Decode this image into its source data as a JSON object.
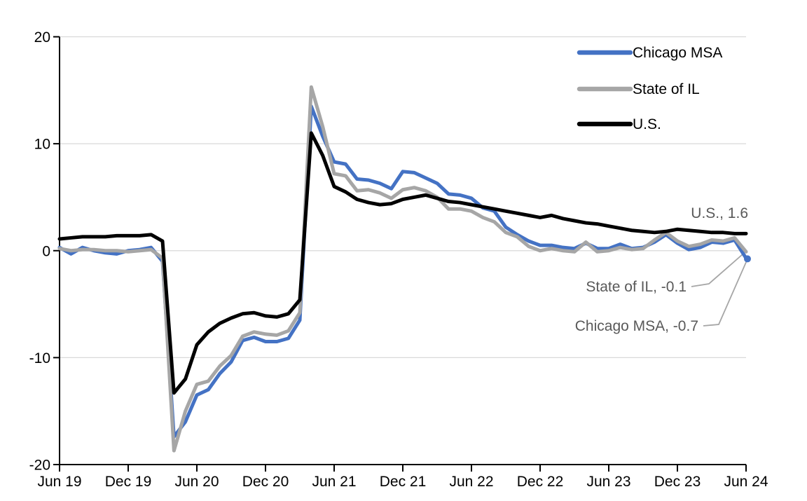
{
  "chart_data": {
    "type": "line",
    "title": "",
    "xlabel": "",
    "ylabel": "",
    "ylim": [
      -20,
      20
    ],
    "y_ticks": [
      20,
      10,
      0,
      -10,
      -20
    ],
    "x_tick_labels": [
      "Jun 19",
      "Dec 19",
      "Jun 20",
      "Dec 20",
      "Jun 21",
      "Dec 21",
      "Jun 22",
      "Dec 22",
      "Jun 23",
      "Dec 23",
      "Jun 24"
    ],
    "x_unit": "month",
    "x_range_months": 61,
    "grid": "horizontal-only",
    "legend_position": "top-right",
    "axis_color": "#000000",
    "gridline_color": "#d9d9d9",
    "annotation_text_color": "#595959",
    "leader_line_color": "#a6a6a6",
    "series": [
      {
        "name": "Chicago MSA",
        "color": "#4472C4",
        "end_value": -0.7,
        "annotation": "Chicago MSA, -0.7",
        "end_dot": true,
        "values": [
          0.3,
          -0.3,
          0.3,
          0.0,
          -0.2,
          -0.3,
          0.0,
          0.1,
          0.3,
          -1.0,
          -17.4,
          -16.0,
          -13.5,
          -13.0,
          -11.5,
          -10.4,
          -8.4,
          -8.1,
          -8.5,
          -8.5,
          -8.2,
          -6.5,
          13.5,
          10.7,
          8.3,
          8.1,
          6.7,
          6.6,
          6.3,
          5.8,
          7.4,
          7.3,
          6.8,
          6.3,
          5.3,
          5.2,
          4.9,
          4.0,
          3.7,
          2.2,
          1.5,
          0.9,
          0.5,
          0.5,
          0.3,
          0.2,
          0.7,
          0.2,
          0.2,
          0.6,
          0.2,
          0.3,
          0.8,
          1.5,
          0.7,
          0.1,
          0.3,
          0.8,
          0.7,
          1.0,
          -0.7
        ]
      },
      {
        "name": "State of IL",
        "color": "#A6A6A6",
        "end_value": -0.1,
        "annotation": "State of IL, -0.1",
        "end_dot": false,
        "values": [
          0.2,
          0.0,
          0.1,
          0.1,
          0.0,
          0.0,
          -0.1,
          0.0,
          0.1,
          -0.7,
          -18.7,
          -15.0,
          -12.5,
          -12.2,
          -10.8,
          -9.8,
          -8.0,
          -7.6,
          -7.8,
          -7.9,
          -7.5,
          -5.8,
          15.3,
          11.6,
          7.2,
          7.0,
          5.6,
          5.7,
          5.4,
          4.9,
          5.7,
          5.9,
          5.6,
          5.0,
          3.9,
          3.9,
          3.7,
          3.1,
          2.7,
          1.7,
          1.3,
          0.4,
          0.0,
          0.2,
          0.0,
          -0.1,
          0.8,
          -0.1,
          0.0,
          0.3,
          0.1,
          0.2,
          1.0,
          1.7,
          0.9,
          0.4,
          0.6,
          1.0,
          0.9,
          1.2,
          -0.1
        ]
      },
      {
        "name": "U.S.",
        "color": "#000000",
        "end_value": 1.6,
        "annotation": "U.S., 1.6",
        "end_dot": false,
        "values": [
          1.1,
          1.2,
          1.3,
          1.3,
          1.3,
          1.4,
          1.4,
          1.4,
          1.5,
          0.9,
          -13.3,
          -12.0,
          -8.8,
          -7.6,
          -6.8,
          -6.3,
          -5.9,
          -5.8,
          -6.1,
          -6.2,
          -5.9,
          -4.6,
          11.0,
          8.9,
          6.0,
          5.5,
          4.8,
          4.5,
          4.3,
          4.4,
          4.8,
          5.0,
          5.2,
          4.9,
          4.6,
          4.5,
          4.3,
          4.1,
          3.9,
          3.7,
          3.5,
          3.3,
          3.1,
          3.3,
          3.0,
          2.8,
          2.6,
          2.5,
          2.3,
          2.1,
          1.9,
          1.8,
          1.7,
          1.8,
          2.0,
          1.9,
          1.8,
          1.7,
          1.7,
          1.6,
          1.6
        ]
      }
    ]
  },
  "legend": {
    "items": [
      "Chicago MSA",
      "State of IL",
      "U.S."
    ]
  },
  "annotations": {
    "us": "U.S., 1.6",
    "il": "State of IL, -0.1",
    "chicago": "Chicago MSA, -0.7"
  }
}
